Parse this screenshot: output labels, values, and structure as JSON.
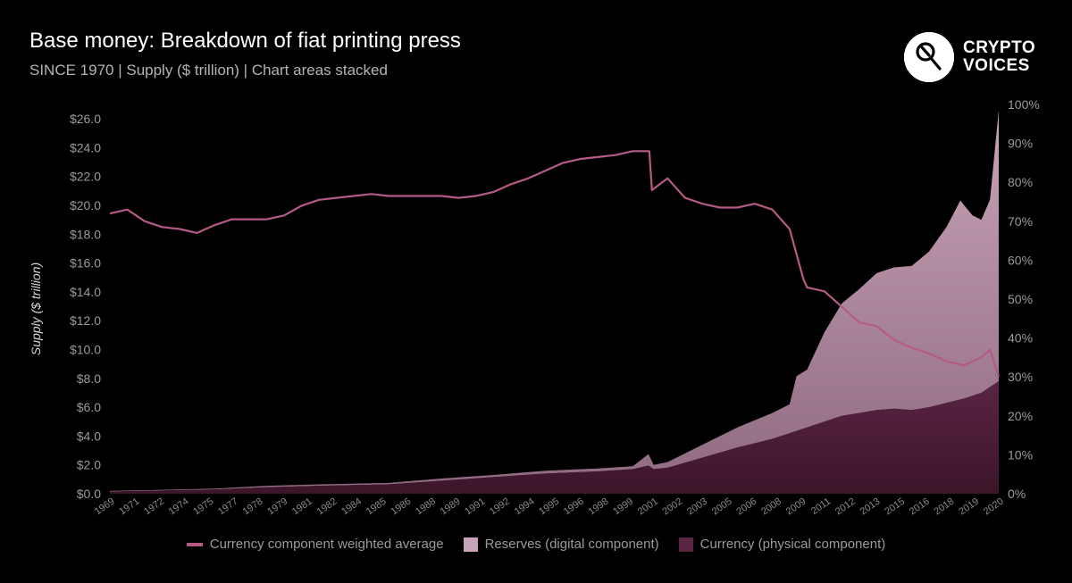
{
  "header": {
    "title": "Base money: Breakdown of fiat printing press",
    "subtitle": "SINCE 1970 | Supply ($ trillion) | Chart areas stacked"
  },
  "brand": {
    "line1": "CRYPTO",
    "line2": "VOICES"
  },
  "colors": {
    "background": "#000000",
    "currency_physical": "#4a1c35",
    "reserves_digital": "#c9a4b8",
    "weighted_average_line": "#b55a86"
  },
  "chart_data": {
    "type": "area",
    "stacked": true,
    "title": "Base money: Breakdown of fiat printing press",
    "subtitle": "SINCE 1970 | Supply ($ trillion) | Chart areas stacked",
    "ylabel": "Supply ($ trillion)",
    "ylim": [
      0,
      27
    ],
    "y2lim": [
      0,
      100
    ],
    "xlim": [
      1969,
      2020
    ],
    "y_ticks": [
      "$0.0",
      "$2.0",
      "$4.0",
      "$6.0",
      "$8.0",
      "$10.0",
      "$12.0",
      "$14.0",
      "$16.0",
      "$18.0",
      "$20.0",
      "$22.0",
      "$24.0",
      "$26.0"
    ],
    "y2_ticks": [
      "0%",
      "10%",
      "20%",
      "30%",
      "40%",
      "50%",
      "60%",
      "70%",
      "80%",
      "90%",
      "100%"
    ],
    "x_ticks": [
      "1969",
      "1971",
      "1972",
      "1974",
      "1975",
      "1977",
      "1978",
      "1979",
      "1981",
      "1982",
      "1984",
      "1985",
      "1986",
      "1988",
      "1989",
      "1991",
      "1992",
      "1994",
      "1995",
      "1996",
      "1998",
      "1999",
      "2001",
      "2002",
      "2003",
      "2005",
      "2006",
      "2008",
      "2009",
      "2011",
      "2012",
      "2013",
      "2015",
      "2016",
      "2018",
      "2019",
      "2020"
    ],
    "grid": false,
    "legend": "bottom",
    "series": [
      {
        "name": "Currency (physical component)",
        "type": "area",
        "axis": "left",
        "x": [
          1969,
          1972,
          1975,
          1978,
          1981,
          1985,
          1988,
          1991,
          1994,
          1997,
          1999,
          1999.9,
          2000.2,
          2001,
          2003,
          2005,
          2007,
          2008,
          2009,
          2010,
          2011,
          2012,
          2013,
          2014,
          2015,
          2016,
          2017,
          2018,
          2019,
          2020
        ],
        "values": [
          0.15,
          0.22,
          0.3,
          0.45,
          0.55,
          0.65,
          0.9,
          1.15,
          1.4,
          1.55,
          1.7,
          1.95,
          1.7,
          1.8,
          2.5,
          3.2,
          3.8,
          4.2,
          4.6,
          5.0,
          5.4,
          5.6,
          5.8,
          5.9,
          5.8,
          6.0,
          6.3,
          6.6,
          7.0,
          7.8
        ]
      },
      {
        "name": "Reserves (digital component)",
        "type": "area",
        "axis": "left",
        "x": [
          1969,
          1972,
          1975,
          1978,
          1981,
          1985,
          1988,
          1991,
          1994,
          1997,
          1999,
          1999.9,
          2000.2,
          2001,
          2003,
          2005,
          2007,
          2008,
          2008.4,
          2009,
          2010,
          2011,
          2012,
          2013,
          2014,
          2015,
          2016,
          2017,
          2017.8,
          2018.5,
          2019,
          2019.5,
          2020
        ],
        "values": [
          0.05,
          0.05,
          0.05,
          0.1,
          0.1,
          0.1,
          0.15,
          0.15,
          0.2,
          0.2,
          0.2,
          0.8,
          0.3,
          0.4,
          0.9,
          1.4,
          1.8,
          2.0,
          3.8,
          4.0,
          6.2,
          7.8,
          8.6,
          9.5,
          9.8,
          10.0,
          10.8,
          12.2,
          13.8,
          12.5,
          12.0,
          13.0,
          18.8
        ]
      },
      {
        "name": "Currency component weighted average",
        "type": "line",
        "axis": "right",
        "unit": "%",
        "x": [
          1969,
          1970,
          1971,
          1972,
          1973,
          1974,
          1975,
          1976,
          1977,
          1978,
          1979,
          1980,
          1981,
          1982,
          1983,
          1984,
          1985,
          1986,
          1987,
          1988,
          1989,
          1990,
          1991,
          1992,
          1993,
          1994,
          1995,
          1996,
          1997,
          1998,
          1999,
          1999.95,
          2000.1,
          2001,
          2002,
          2003,
          2004,
          2005,
          2006,
          2007,
          2008,
          2008.8,
          2009,
          2010,
          2011,
          2012,
          2013,
          2014,
          2015,
          2016,
          2017,
          2018,
          2019,
          2019.5,
          2020
        ],
        "values": [
          72,
          73,
          70,
          68.5,
          68,
          67,
          69,
          70.5,
          70.5,
          70.5,
          71.5,
          74,
          75.5,
          76,
          76.5,
          77,
          76.5,
          76.5,
          76.5,
          76.5,
          76,
          76.5,
          77.5,
          79.5,
          81,
          83,
          85,
          86,
          86.5,
          87,
          88,
          88,
          78,
          81,
          76,
          74.5,
          73.5,
          73.5,
          74.5,
          73,
          68,
          55,
          53,
          52,
          48,
          44,
          43,
          39.5,
          37.5,
          36,
          34,
          33,
          35,
          37,
          30
        ]
      }
    ]
  }
}
